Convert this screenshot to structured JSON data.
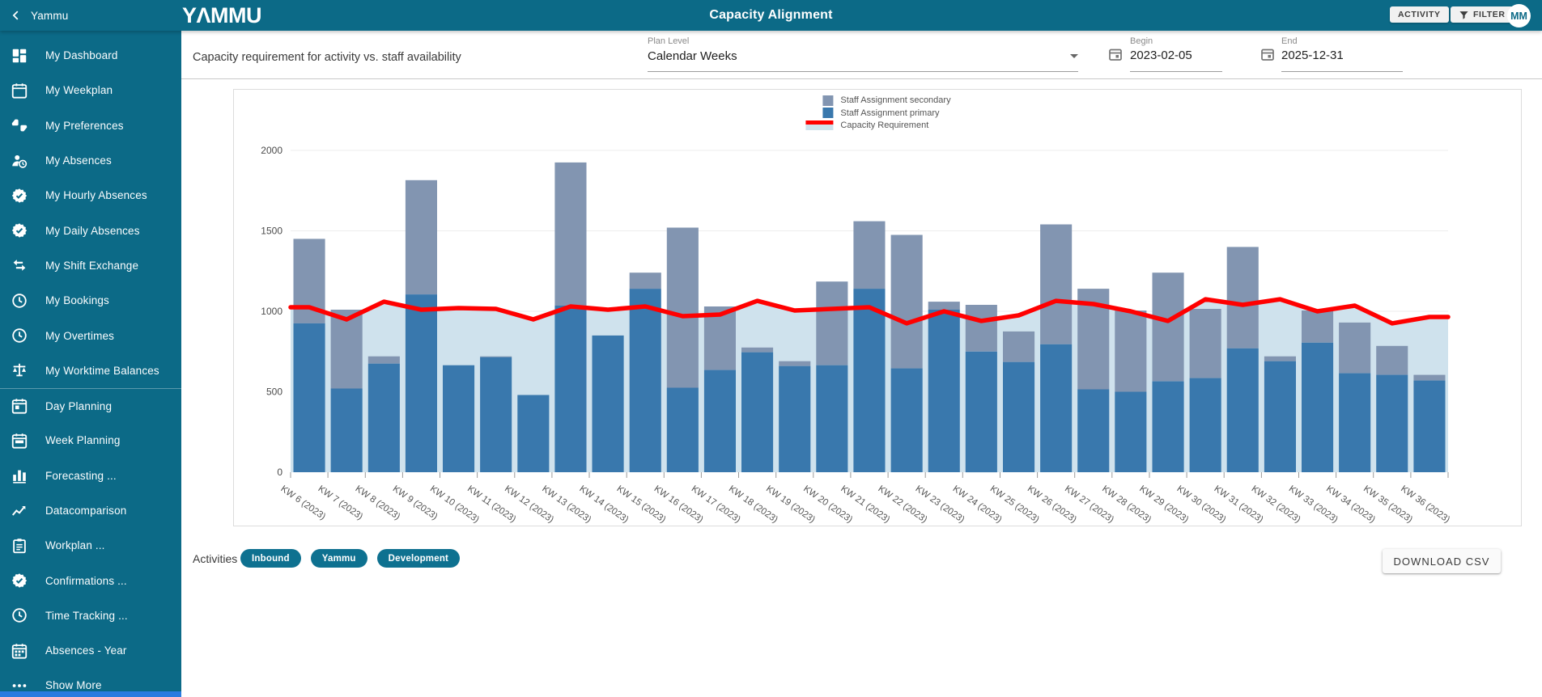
{
  "app": {
    "back_label": "Yammu",
    "logo": "YΛMMU",
    "title": "Capacity Alignment",
    "activity_button": "ACTIVITY",
    "filter_button": "FILTER",
    "avatar": "MM"
  },
  "colors": {
    "teal": "#0c6a87",
    "chip_teal": "#0e7190",
    "sidebar_scrollbar_blue": "#2b7ce0"
  },
  "sidebar": {
    "divider_after_index": 9,
    "items": [
      {
        "icon": "dashboard-icon",
        "label": "My Dashboard"
      },
      {
        "icon": "calendar-icon",
        "label": "My Weekplan"
      },
      {
        "icon": "thumbs-icon",
        "label": "My Preferences"
      },
      {
        "icon": "person-clock-icon",
        "label": "My Absences"
      },
      {
        "icon": "badge-check-icon",
        "label": "My Hourly Absences"
      },
      {
        "icon": "badge-check-icon",
        "label": "My Daily Absences"
      },
      {
        "icon": "swap-arrows-icon",
        "label": "My Shift Exchange"
      },
      {
        "icon": "clock-icon",
        "label": "My Bookings"
      },
      {
        "icon": "clock-icon",
        "label": "My Overtimes"
      },
      {
        "icon": "scale-icon",
        "label": "My Worktime Balances"
      },
      {
        "icon": "calendar-day-icon",
        "label": "Day Planning"
      },
      {
        "icon": "calendar-week-icon",
        "label": "Week Planning"
      },
      {
        "icon": "bar-chart-icon",
        "label": "Forecasting ..."
      },
      {
        "icon": "line-chart-icon",
        "label": "Datacomparison"
      },
      {
        "icon": "clipboard-icon",
        "label": "Workplan ..."
      },
      {
        "icon": "badge-check-icon",
        "label": "Confirmations ..."
      },
      {
        "icon": "clock-icon",
        "label": "Time Tracking ..."
      },
      {
        "icon": "calendar-month-icon",
        "label": "Absences - Year"
      },
      {
        "icon": "dots-icon",
        "label": "Show More"
      }
    ]
  },
  "filters": {
    "description": "Capacity requirement for activity vs. staff availability",
    "plan_level": {
      "label": "Plan Level",
      "value": "Calendar Weeks"
    },
    "begin": {
      "label": "Begin",
      "value": "2023-02-05"
    },
    "end": {
      "label": "End",
      "value": "2025-12-31"
    }
  },
  "chart_data": {
    "type": "bar",
    "stacked": true,
    "grid": true,
    "legend_position": "top-center",
    "ylim": [
      0,
      2000
    ],
    "yticks": [
      0,
      500,
      1000,
      1500,
      2000
    ],
    "categories": [
      "KW 6 (2023)",
      "KW 7 (2023)",
      "KW 8 (2023)",
      "KW 9 (2023)",
      "KW 10 (2023)",
      "KW 11 (2023)",
      "KW 12 (2023)",
      "KW 13 (2023)",
      "KW 14 (2023)",
      "KW 15 (2023)",
      "KW 16 (2023)",
      "KW 17 (2023)",
      "KW 18 (2023)",
      "KW 19 (2023)",
      "KW 20 (2023)",
      "KW 21 (2023)",
      "KW 22 (2023)",
      "KW 23 (2023)",
      "KW 24 (2023)",
      "KW 25 (2023)",
      "KW 26 (2023)",
      "KW 27 (2023)",
      "KW 28 (2023)",
      "KW 29 (2023)",
      "KW 30 (2023)",
      "KW 31 (2023)",
      "KW 32 (2023)",
      "KW 33 (2023)",
      "KW 34 (2023)",
      "KW 35 (2023)",
      "KW 36 (2023)"
    ],
    "series": [
      {
        "name": "Staff Assignment primary",
        "type": "bar",
        "color": "#3978ad",
        "values": [
          925,
          520,
          675,
          1105,
          665,
          715,
          480,
          1035,
          850,
          1140,
          525,
          635,
          745,
          660,
          665,
          1140,
          645,
          1010,
          750,
          685,
          795,
          515,
          500,
          565,
          585,
          770,
          690,
          805,
          615,
          605,
          570
        ]
      },
      {
        "name": "Staff Assignment secondary",
        "type": "bar",
        "color": "#8295b1",
        "values": [
          525,
          490,
          45,
          710,
          0,
          5,
          0,
          890,
          0,
          100,
          995,
          395,
          30,
          30,
          520,
          420,
          830,
          50,
          290,
          190,
          745,
          625,
          505,
          675,
          430,
          630,
          30,
          200,
          315,
          180,
          35
        ]
      },
      {
        "name": "Capacity Requirement",
        "type": "area-line",
        "line_color": "#ff0000",
        "fill_color": "#cfe2ed",
        "values": [
          1025,
          950,
          1060,
          1010,
          1020,
          1015,
          950,
          1030,
          1010,
          1030,
          970,
          980,
          1065,
          1005,
          1015,
          1025,
          925,
          1000,
          940,
          975,
          1065,
          1045,
          1000,
          940,
          1075,
          1040,
          1075,
          1000,
          1035,
          925,
          965
        ]
      }
    ]
  },
  "activities": {
    "label": "Activities :",
    "chips": [
      "Inbound",
      "Yammu",
      "Development"
    ]
  },
  "download_button": "DOWNLOAD CSV"
}
